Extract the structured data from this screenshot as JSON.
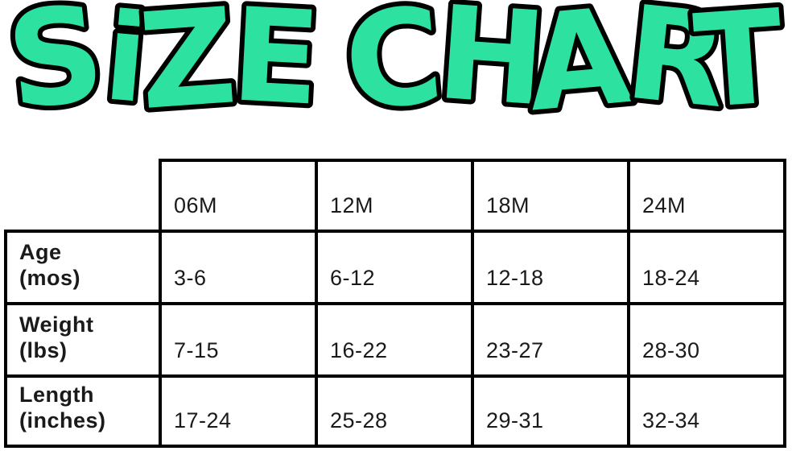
{
  "title": {
    "text": "SiZE CHART",
    "letters": [
      "S",
      "i",
      "Z",
      "E",
      "C",
      "H",
      "A",
      "R",
      "T"
    ],
    "fill_color": "#2DE1A0",
    "outline_color": "#000000"
  },
  "table": {
    "size_headers": [
      "06M",
      "12M",
      "18M",
      "24M"
    ],
    "rows": [
      {
        "label_lines": [
          "Age",
          "(mos)"
        ],
        "values": [
          "3-6",
          "6-12",
          "12-18",
          "18-24"
        ]
      },
      {
        "label_lines": [
          "Weight",
          "(lbs)"
        ],
        "values": [
          "7-15",
          "16-22",
          "23-27",
          "28-30"
        ]
      },
      {
        "label_lines": [
          "Length",
          "(inches)"
        ],
        "values": [
          "17-24",
          "25-28",
          "29-31",
          "32-34"
        ]
      }
    ],
    "border_color": "#000000",
    "text_color": "#1a1a1a"
  },
  "chart_data": {
    "type": "table",
    "title": "SIZE CHART",
    "columns": [
      "",
      "06M",
      "12M",
      "18M",
      "24M"
    ],
    "rows": [
      [
        "Age (mos)",
        "3-6",
        "6-12",
        "12-18",
        "18-24"
      ],
      [
        "Weight (lbs)",
        "7-15",
        "16-22",
        "23-27",
        "28-30"
      ],
      [
        "Length (inches)",
        "17-24",
        "25-28",
        "29-31",
        "32-34"
      ]
    ]
  }
}
